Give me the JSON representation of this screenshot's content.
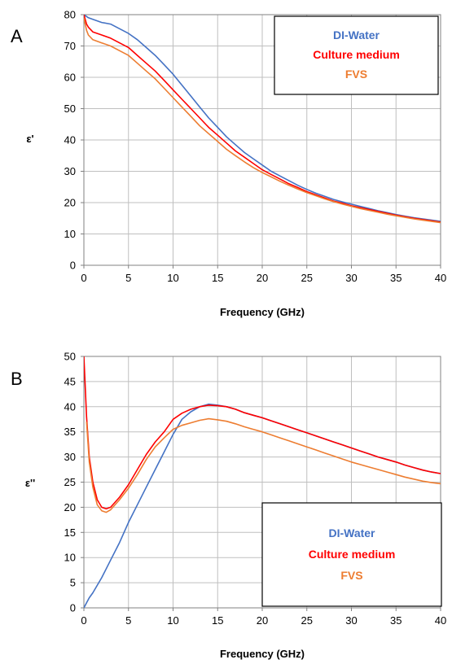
{
  "chart_data": [
    {
      "type": "line",
      "panel_label": "A",
      "xlabel": "Frequency (GHz)",
      "ylabel": "ε'",
      "xlim": [
        0,
        40
      ],
      "ylim": [
        0,
        80
      ],
      "xticks": [
        0,
        5,
        10,
        15,
        20,
        25,
        30,
        35,
        40
      ],
      "yticks": [
        0,
        10,
        20,
        30,
        40,
        50,
        60,
        70,
        80
      ],
      "grid": true,
      "legend_position": "top-right",
      "series": [
        {
          "name": "DI-Water",
          "color": "#4472C4",
          "x": [
            0,
            0.5,
            1,
            2,
            3,
            4,
            5,
            6,
            7,
            8,
            9,
            10,
            11,
            12,
            13,
            14,
            15,
            16,
            17,
            18,
            19,
            20,
            21,
            22,
            23,
            24,
            25,
            26,
            27,
            28,
            29,
            30,
            31,
            32,
            33,
            34,
            35,
            36,
            37,
            38,
            39,
            40
          ],
          "y": [
            80,
            79,
            78.5,
            77.5,
            77,
            75.5,
            74,
            72,
            69.5,
            67,
            64,
            61,
            57.5,
            54,
            50.5,
            47,
            44,
            41,
            38.5,
            36,
            34,
            32,
            30,
            28.5,
            27,
            25.5,
            24.2,
            23,
            22,
            21,
            20.2,
            19.5,
            18.8,
            18.1,
            17.4,
            16.8,
            16.2,
            15.7,
            15.2,
            14.8,
            14.4,
            14
          ]
        },
        {
          "name": "Culture medium",
          "color": "#FF0000",
          "x": [
            0,
            0.3,
            0.5,
            1,
            2,
            3,
            4,
            5,
            6,
            7,
            8,
            9,
            10,
            11,
            12,
            13,
            14,
            15,
            16,
            17,
            18,
            19,
            20,
            21,
            22,
            23,
            24,
            25,
            26,
            27,
            28,
            29,
            30,
            31,
            32,
            33,
            34,
            35,
            36,
            37,
            38,
            39,
            40
          ],
          "y": [
            80,
            77,
            76,
            74.5,
            73.5,
            72.5,
            71,
            69.5,
            67,
            64.5,
            62,
            59,
            56,
            53,
            50,
            47,
            44,
            41.5,
            39,
            36.5,
            34.5,
            32.5,
            30.5,
            29,
            27.5,
            26,
            24.8,
            23.5,
            22.5,
            21.5,
            20.5,
            19.8,
            19,
            18.4,
            17.8,
            17.2,
            16.6,
            16,
            15.5,
            15,
            14.6,
            14.2,
            13.8
          ]
        },
        {
          "name": "FVS",
          "color": "#ED7D31",
          "x": [
            0,
            0.3,
            0.5,
            1,
            2,
            3,
            4,
            5,
            6,
            7,
            8,
            9,
            10,
            11,
            12,
            13,
            14,
            15,
            16,
            17,
            18,
            19,
            20,
            21,
            22,
            23,
            24,
            25,
            26,
            27,
            28,
            29,
            30,
            31,
            32,
            33,
            34,
            35,
            36,
            37,
            38,
            39,
            40
          ],
          "y": [
            79,
            75,
            73.5,
            72,
            71,
            70,
            68.5,
            67,
            64.5,
            62,
            59.5,
            56.5,
            53.5,
            50.5,
            47.5,
            44.5,
            42,
            39.5,
            37,
            35,
            33,
            31.2,
            29.6,
            28.2,
            26.8,
            25.5,
            24.3,
            23.2,
            22.2,
            21.2,
            20.3,
            19.5,
            18.8,
            18.1,
            17.5,
            16.9,
            16.3,
            15.8,
            15.3,
            14.8,
            14.4,
            14,
            13.6
          ]
        }
      ]
    },
    {
      "type": "line",
      "panel_label": "B",
      "xlabel": "Frequency (GHz)",
      "ylabel": "ε''",
      "xlim": [
        0,
        40
      ],
      "ylim": [
        0,
        50
      ],
      "xticks": [
        0,
        5,
        10,
        15,
        20,
        25,
        30,
        35,
        40
      ],
      "yticks": [
        0,
        5,
        10,
        15,
        20,
        25,
        30,
        35,
        40,
        45,
        50
      ],
      "grid": true,
      "legend_position": "bottom-right",
      "series": [
        {
          "name": "DI-Water",
          "color": "#4472C4",
          "x": [
            0,
            0.3,
            0.6,
            1,
            2,
            3,
            4,
            5,
            6,
            7,
            8,
            9,
            10,
            11,
            12,
            13,
            14,
            15,
            16,
            17,
            18,
            19,
            20,
            21,
            22,
            23,
            24,
            25,
            26,
            27,
            28,
            29,
            30,
            31,
            32,
            33,
            34,
            35,
            36,
            37,
            38,
            39,
            40
          ],
          "y": [
            0,
            1,
            2,
            3,
            6,
            9.5,
            13,
            17,
            20.5,
            24,
            27.5,
            31,
            34.5,
            37.5,
            39,
            40,
            40.5,
            40.3,
            40,
            39.5,
            38.8,
            38.3,
            37.8,
            37.2,
            36.6,
            36,
            35.4,
            34.8,
            34.2,
            33.6,
            33,
            32.4,
            31.8,
            31.2,
            30.6,
            30,
            29.5,
            29,
            28.4,
            27.9,
            27.4,
            27,
            26.7
          ]
        },
        {
          "name": "Culture medium",
          "color": "#FF0000",
          "x": [
            0,
            0.3,
            0.6,
            1,
            1.5,
            2,
            2.5,
            3,
            4,
            5,
            6,
            7,
            8,
            9,
            10,
            11,
            12,
            13,
            14,
            15,
            16,
            17,
            18,
            19,
            20,
            21,
            22,
            23,
            24,
            25,
            26,
            27,
            28,
            29,
            30,
            31,
            32,
            33,
            34,
            35,
            36,
            37,
            38,
            39,
            40
          ],
          "y": [
            50,
            38,
            30,
            25,
            21.5,
            20,
            19.7,
            20,
            22,
            24.5,
            27.5,
            30.5,
            33,
            35,
            37.5,
            38.7,
            39.5,
            40,
            40.3,
            40.2,
            40,
            39.5,
            38.8,
            38.3,
            37.8,
            37.2,
            36.6,
            36,
            35.4,
            34.8,
            34.2,
            33.6,
            33,
            32.4,
            31.8,
            31.2,
            30.6,
            30,
            29.5,
            29,
            28.4,
            27.9,
            27.4,
            27,
            26.7
          ]
        },
        {
          "name": "FVS",
          "color": "#ED7D31",
          "x": [
            0.3,
            0.6,
            1,
            1.5,
            2,
            2.5,
            3,
            4,
            5,
            6,
            7,
            8,
            9,
            10,
            11,
            12,
            13,
            14,
            15,
            16,
            17,
            18,
            19,
            20,
            21,
            22,
            23,
            24,
            25,
            26,
            27,
            28,
            29,
            30,
            31,
            32,
            33,
            34,
            35,
            36,
            37,
            38,
            39,
            40
          ],
          "y": [
            37,
            29,
            24,
            20.5,
            19.3,
            19,
            19.5,
            21.5,
            23.8,
            26.5,
            29.5,
            32,
            33.8,
            35.5,
            36.3,
            36.8,
            37.3,
            37.6,
            37.4,
            37.1,
            36.6,
            36,
            35.5,
            35,
            34.4,
            33.8,
            33.2,
            32.6,
            32,
            31.4,
            30.8,
            30.2,
            29.6,
            29,
            28.5,
            28,
            27.5,
            27,
            26.5,
            26,
            25.6,
            25.2,
            24.9,
            24.7
          ]
        }
      ]
    }
  ]
}
